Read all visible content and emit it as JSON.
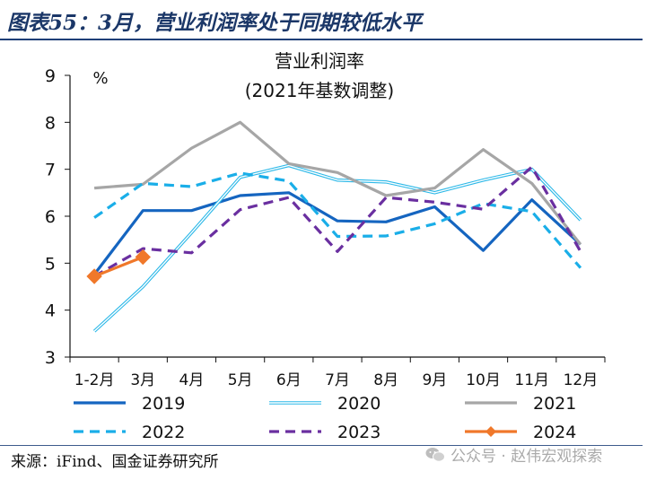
{
  "header": {
    "title": "图表55：3月，营业利润率处于同期较低水平"
  },
  "footer": {
    "source": "来源：iFind、国金证券研究所",
    "watermark": "公众号 · 赵伟宏观探索",
    "watermark_icon": "wechat-icon"
  },
  "chart_data": {
    "type": "line",
    "title": "营业利润率",
    "subtitle": "(2021年基数调整)",
    "ylabel": "%",
    "xlabel": "",
    "ylim": [
      3,
      9
    ],
    "yticks": [
      "3",
      "4",
      "5",
      "6",
      "7",
      "8",
      "9"
    ],
    "grid": false,
    "categories": [
      "1-2月",
      "3月",
      "4月",
      "5月",
      "6月",
      "7月",
      "8月",
      "9月",
      "10月",
      "11月",
      "12月"
    ],
    "legend_position": "bottom",
    "series": [
      {
        "name": "2019",
        "color": "#1565c0",
        "style": "solid",
        "width": "thick",
        "marker": "none",
        "values": [
          4.76,
          6.12,
          6.12,
          6.44,
          6.5,
          5.9,
          5.88,
          6.2,
          5.27,
          6.35,
          5.4
        ]
      },
      {
        "name": "2020",
        "color": "#2bb8e8",
        "style": "double",
        "width": "thin",
        "marker": "none",
        "values": [
          3.55,
          4.5,
          5.65,
          6.83,
          7.08,
          6.77,
          6.73,
          6.5,
          6.77,
          7.0,
          5.92
        ]
      },
      {
        "name": "2021",
        "color": "#a6a6a6",
        "style": "solid",
        "width": "thick",
        "marker": "none",
        "values": [
          6.6,
          6.68,
          7.45,
          8.0,
          7.12,
          6.93,
          6.44,
          6.6,
          7.42,
          6.7,
          5.4
        ]
      },
      {
        "name": "2022",
        "color": "#1aaee8",
        "style": "dashed",
        "width": "thick",
        "marker": "none",
        "values": [
          5.97,
          6.7,
          6.63,
          6.92,
          6.75,
          5.57,
          5.58,
          5.84,
          6.27,
          6.1,
          4.9
        ]
      },
      {
        "name": "2023",
        "color": "#6a2fa0",
        "style": "dashed",
        "width": "thick",
        "marker": "none",
        "values": [
          4.72,
          5.31,
          5.22,
          6.14,
          6.4,
          5.25,
          6.4,
          6.3,
          6.15,
          7.05,
          5.25
        ]
      },
      {
        "name": "2024",
        "color": "#f0782a",
        "style": "solid",
        "width": "thick",
        "marker": "diamond",
        "values": [
          4.72,
          5.13,
          null,
          null,
          null,
          null,
          null,
          null,
          null,
          null,
          null
        ]
      }
    ]
  }
}
